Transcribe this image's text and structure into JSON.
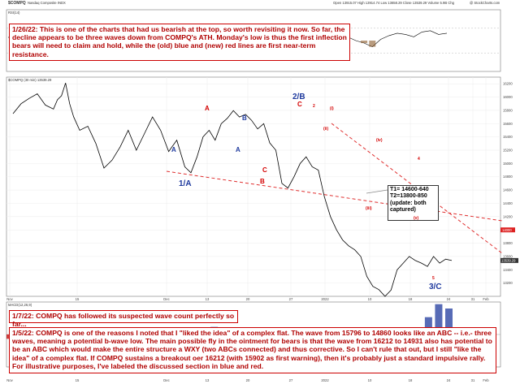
{
  "header": {
    "symbol": "$COMPQ",
    "exchange": "Nasdaq Composite  INDX",
    "stats": "Open 13915.07  High 13914.74  Low 13658.29  Close 13539.29  Volume 5.9B  Chg",
    "watermark": "@ StockCharts.com",
    "price_label": "$COMPQ (30 min) 13539.29",
    "macd_label": "MACD(12,26,9)",
    "top_panel_label": "RSI(14)"
  },
  "commentary": {
    "top": "1/26/22:  This is one of the charts that had us bearish at the top, so worth revisiting it now.  So far, the decline appears to be three waves down from COMPQ's ATH.  Monday's low is thus the first inflection bears will need to claim and hold, while the (old) blue and (new) red lines are first near-term resistance.",
    "middle": "1/7/22:  COMPQ has followed its suspected wave count perfectly so far...",
    "bottom": "1/5/22:  COMPQ is one of the reasons I noted that I \"liked the idea\" of a complex flat.  The wave from 15796 to 14860 looks like an ABC -- i.e.- three waves, meaning a potential b-wave low.  The main possible fly in the ointment for bears is that the wave from 16212 to 14931 also has potential to be an ABC which would make the entire structure a WXY (two ABCs connected) and thus corrective.  So I can't rule that out, but I still \"like the idea\" of a complex flat.  If COMPQ sustains a breakout oer 16212 (with 15902 as first warning), then it's probably just a standard impulsive rally.  For illustrative purposes, I've labeled the discussed section in blue and red."
  },
  "targets": {
    "t1": "T1= 14600-640",
    "t2": "T2=13800-850",
    "note": "(update: both captured)"
  },
  "wave_labels": {
    "one_a": "1/A",
    "two_b": "2/B",
    "three_c": "3/C",
    "blue_a": "A",
    "blue_b": "B",
    "blue_b2": "B",
    "blue_a2": "A",
    "red_a": "A",
    "red_c": "C",
    "red_b": "B",
    "red_c2": "C",
    "sub_2": "2",
    "sub_i": "(i)",
    "sub_ii": "(ii)",
    "sub_iii": "(iii)",
    "sub_iv": "(iv)",
    "sub_v": "(v)",
    "sub_5": "5",
    "sub_4": "4"
  },
  "chart_data": {
    "type": "line",
    "title": "Nasdaq Composite",
    "x_ticks": [
      "Nov",
      "15",
      "Dec",
      "13",
      "20",
      "27",
      "2022",
      "10",
      "18",
      "24",
      "31",
      "Feb"
    ],
    "y_ticks": [
      13200,
      13400,
      13600,
      13800,
      14000,
      14200,
      14400,
      14600,
      14800,
      15000,
      15200,
      15400,
      15600,
      15800,
      16000,
      16200
    ],
    "ylim": [
      13000,
      16300
    ],
    "last_value": 13539.29,
    "price_marker": 14000,
    "series": [
      {
        "name": "$COMPQ (30 min)",
        "x": [
          0,
          4,
          8,
          12,
          16,
          20,
          22,
          24,
          26,
          28,
          30,
          33,
          37,
          41,
          45,
          49,
          53,
          57,
          61,
          65,
          69,
          73,
          77,
          81,
          85,
          88,
          91,
          94,
          97,
          100,
          103,
          106,
          109,
          112,
          115,
          118,
          121,
          124,
          127,
          130,
          133,
          136,
          139,
          142,
          145,
          148,
          151,
          154,
          157,
          160,
          163,
          166,
          169,
          172,
          175,
          178,
          181,
          184,
          187,
          190,
          193,
          196,
          199,
          202,
          205,
          208,
          211,
          214,
          217
        ],
        "values": [
          15750,
          15900,
          15980,
          16050,
          15880,
          15820,
          15960,
          16020,
          16212,
          15900,
          15700,
          15500,
          15560,
          15300,
          14931,
          15050,
          15250,
          15500,
          15200,
          15450,
          15700,
          15500,
          15180,
          15350,
          14950,
          14860,
          15100,
          15400,
          15500,
          15350,
          15600,
          15680,
          15796,
          15700,
          15740,
          15650,
          15520,
          15600,
          15310,
          15200,
          14700,
          14630,
          14800,
          15000,
          15100,
          14950,
          14900,
          14500,
          14200,
          14000,
          13850,
          13760,
          13700,
          13600,
          13300,
          13150,
          13100,
          13000,
          13094,
          13400,
          13500,
          13600,
          13539.29,
          13500,
          13450,
          13600,
          13500,
          13560,
          13539.29
        ],
        "color": "#000000"
      }
    ],
    "top_indicator": {
      "name": "RSI(14)",
      "values": [
        55,
        60,
        62,
        58,
        48,
        52,
        56,
        50,
        45,
        42,
        52,
        58,
        46,
        40,
        50,
        56,
        62,
        58,
        54,
        60,
        58,
        50,
        46,
        52,
        60,
        56,
        62,
        58,
        64,
        60,
        55,
        48,
        42,
        46,
        50,
        44,
        40,
        46,
        52,
        58,
        60,
        56,
        50,
        46,
        40,
        52,
        58,
        62,
        60,
        56,
        64,
        66,
        60,
        62
      ],
      "bands": [
        70,
        30
      ]
    },
    "macd": {
      "name": "MACD(12,26,9)",
      "values": [
        -20,
        10,
        30,
        20,
        -10,
        -30,
        -20,
        15,
        30,
        -10,
        -40,
        -30,
        -5,
        20,
        10,
        -15,
        -35,
        -25,
        5,
        25,
        35,
        15,
        -10,
        -25,
        -5,
        10,
        20,
        -5,
        -30,
        -40,
        -25,
        -5,
        -20,
        -45,
        -60,
        -80,
        -100,
        -120,
        -90,
        -40,
        20,
        80,
        140,
        120
      ],
      "ylim": [
        -150,
        150
      ],
      "color_up": "#1f3a9e",
      "color_down": "#c00000"
    }
  }
}
